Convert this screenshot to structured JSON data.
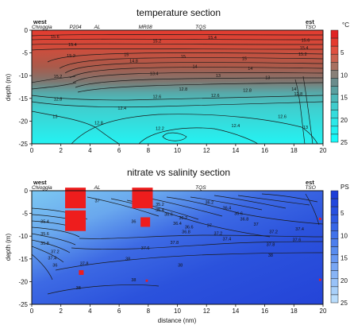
{
  "chart_data": [
    {
      "type": "contour",
      "title": "temperature section",
      "ylabel": "depth (m)",
      "xlabel": "",
      "xlim": [
        0,
        20
      ],
      "ylim": [
        -25,
        0
      ],
      "xticks": [
        "0",
        "2",
        "4",
        "6",
        "8",
        "10",
        "12",
        "14",
        "16",
        "18",
        "20"
      ],
      "yticks": [
        "0",
        "-5",
        "-10",
        "-15",
        "-20",
        "-25"
      ],
      "side_labels": {
        "left": "west",
        "right": "est"
      },
      "stations": [
        {
          "name": "Chioggia",
          "x": 0
        },
        {
          "name": "P204",
          "x": 3
        },
        {
          "name": "AL",
          "x": 4.5
        },
        {
          "name": "MR08",
          "x": 7.8
        },
        {
          "name": "TQS",
          "x": 11.6
        },
        {
          "name": "TSO",
          "x": 19.5
        }
      ],
      "colorbar": {
        "unit": "°C",
        "ticks": [
          "5",
          "10",
          "15",
          "20",
          "25"
        ],
        "colors": [
          "#e02323",
          "#e43a2f",
          "#e05040",
          "#c96250",
          "#a87060",
          "#888078",
          "#6a8c8c",
          "#5aa0a0",
          "#4cb8b8",
          "#40cccc",
          "#36dcdc",
          "#2ce8e8",
          "#22f0f0",
          "#18f8f8"
        ]
      },
      "contour_labels": [
        {
          "text": "15.6",
          "x": 1.6,
          "y": -1.4
        },
        {
          "text": "15.4",
          "x": 2.8,
          "y": -3.2
        },
        {
          "text": "15.2",
          "x": 2.7,
          "y": -5.6
        },
        {
          "text": "15.2",
          "x": 8.6,
          "y": -2.4
        },
        {
          "text": "15.4",
          "x": 12.4,
          "y": -1.6
        },
        {
          "text": "15.6",
          "x": 18.8,
          "y": -2.2
        },
        {
          "text": "15.4",
          "x": 18.7,
          "y": -3.9
        },
        {
          "text": "15.2",
          "x": 18.6,
          "y": -5.3
        },
        {
          "text": "15",
          "x": 6.5,
          "y": -5.4
        },
        {
          "text": "15",
          "x": 10.4,
          "y": -5.8
        },
        {
          "text": "15",
          "x": 14.6,
          "y": -6.2
        },
        {
          "text": "14.8",
          "x": 7.0,
          "y": -6.8
        },
        {
          "text": "14",
          "x": 11.2,
          "y": -8.0
        },
        {
          "text": "14",
          "x": 15.0,
          "y": -8.4
        },
        {
          "text": "13.4",
          "x": 8.4,
          "y": -9.6
        },
        {
          "text": "13",
          "x": 12.8,
          "y": -10.0
        },
        {
          "text": "13",
          "x": 16.2,
          "y": -10.4
        },
        {
          "text": "15.2",
          "x": 1.8,
          "y": -10.2
        },
        {
          "text": "12.8",
          "x": 10.4,
          "y": -13.0
        },
        {
          "text": "12.8",
          "x": 14.8,
          "y": -13.2
        },
        {
          "text": "12.6",
          "x": 8.6,
          "y": -14.6
        },
        {
          "text": "12.6",
          "x": 12.6,
          "y": -14.4
        },
        {
          "text": "12.8",
          "x": 1.8,
          "y": -15.2
        },
        {
          "text": "13",
          "x": 1.6,
          "y": -19.0
        },
        {
          "text": "12.8",
          "x": 4.6,
          "y": -20.4
        },
        {
          "text": "12.4",
          "x": 6.2,
          "y": -17.2
        },
        {
          "text": "12.4",
          "x": 14.0,
          "y": -21.0
        },
        {
          "text": "12.2",
          "x": 8.8,
          "y": -21.6
        },
        {
          "text": "12.6",
          "x": 17.2,
          "y": -19.0
        },
        {
          "text": "13",
          "x": 18.8,
          "y": -21.4
        },
        {
          "text": "14",
          "x": 18.0,
          "y": -13.0
        },
        {
          "text": "12.8",
          "x": 18.3,
          "y": -14.0
        }
      ]
    },
    {
      "type": "contour",
      "title": "nitrate vs salinity section",
      "ylabel": "depth (m)",
      "xlabel": "distance (nm)",
      "xlim": [
        0,
        20
      ],
      "ylim": [
        -25,
        0
      ],
      "xticks": [
        "0",
        "2",
        "4",
        "6",
        "8",
        "10",
        "12",
        "14",
        "16",
        "18",
        "20"
      ],
      "yticks": [
        "0",
        "-5",
        "-10",
        "-15",
        "-20",
        "-25"
      ],
      "side_labels": {
        "left": "west",
        "right": "est"
      },
      "stations": [
        {
          "name": "Chioggia",
          "x": 0
        },
        {
          "name": "AL",
          "x": 4.5
        },
        {
          "name": "TQS",
          "x": 11.6
        },
        {
          "name": "TSO",
          "x": 19.5
        }
      ],
      "colorbar": {
        "unit": "PS",
        "ticks": [
          "5",
          "10",
          "15",
          "20",
          "25"
        ],
        "colors": [
          "#1f3fd8",
          "#2347dc",
          "#2850e0",
          "#2f5ae2",
          "#3866e6",
          "#4272ea",
          "#4d7eec",
          "#598cef",
          "#6898f2",
          "#78a6f4",
          "#88b4f6",
          "#98c2f8",
          "#a8d0fa",
          "#b8dcfc"
        ]
      },
      "contour_labels": [
        {
          "text": "35.4",
          "x": 0.9,
          "y": -6.8
        },
        {
          "text": "35.6",
          "x": 0.9,
          "y": -9.5
        },
        {
          "text": "35.8",
          "x": 0.9,
          "y": -11.6
        },
        {
          "text": "37.2",
          "x": 1.6,
          "y": -13.4
        },
        {
          "text": "37.4",
          "x": 1.4,
          "y": -14.8
        },
        {
          "text": "36",
          "x": 1.6,
          "y": -16.4
        },
        {
          "text": "37",
          "x": 4.5,
          "y": -2.2
        },
        {
          "text": "35.2",
          "x": 8.8,
          "y": -3.0
        },
        {
          "text": "35.4",
          "x": 8.8,
          "y": -4.2
        },
        {
          "text": "35.6",
          "x": 9.4,
          "y": -5.2
        },
        {
          "text": "36",
          "x": 7.0,
          "y": -6.8
        },
        {
          "text": "36.2",
          "x": 10.4,
          "y": -6.0
        },
        {
          "text": "36.4",
          "x": 10.0,
          "y": -7.2
        },
        {
          "text": "36.6",
          "x": 10.8,
          "y": -8.0
        },
        {
          "text": "36.8",
          "x": 10.6,
          "y": -9.0
        },
        {
          "text": "37",
          "x": 12.2,
          "y": -7.6
        },
        {
          "text": "37.2",
          "x": 12.8,
          "y": -9.4
        },
        {
          "text": "37.4",
          "x": 13.4,
          "y": -10.6
        },
        {
          "text": "36.2",
          "x": 12.2,
          "y": -2.6
        },
        {
          "text": "36.4",
          "x": 13.4,
          "y": -3.8
        },
        {
          "text": "36.6",
          "x": 14.2,
          "y": -5.0
        },
        {
          "text": "36.8",
          "x": 14.6,
          "y": -6.2
        },
        {
          "text": "37",
          "x": 15.4,
          "y": -7.4
        },
        {
          "text": "37.2",
          "x": 16.6,
          "y": -9.0
        },
        {
          "text": "37.4",
          "x": 18.4,
          "y": -8.4
        },
        {
          "text": "37.6",
          "x": 18.2,
          "y": -10.8
        },
        {
          "text": "37.8",
          "x": 9.8,
          "y": -11.4
        },
        {
          "text": "37.6",
          "x": 7.8,
          "y": -12.6
        },
        {
          "text": "37.8",
          "x": 16.4,
          "y": -11.8
        },
        {
          "text": "38",
          "x": 10.2,
          "y": -16.4
        },
        {
          "text": "38",
          "x": 16.4,
          "y": -14.2
        },
        {
          "text": "38",
          "x": 7.0,
          "y": -19.6
        },
        {
          "text": "38",
          "x": 3.2,
          "y": -21.4
        },
        {
          "text": "37.8",
          "x": 3.6,
          "y": -16.0
        },
        {
          "text": "38",
          "x": 6.6,
          "y": -15.0
        }
      ],
      "nitrate_markers": [
        {
          "x": 3.0,
          "y": -1.6,
          "size": "large"
        },
        {
          "x": 7.6,
          "y": -1.6,
          "size": "large"
        },
        {
          "x": 3.0,
          "y": -6.6,
          "size": "large"
        },
        {
          "x": 7.8,
          "y": -6.9,
          "size": "medium"
        },
        {
          "x": 3.4,
          "y": -18.0,
          "size": "small"
        },
        {
          "x": 7.9,
          "y": -19.8,
          "size": "tiny"
        },
        {
          "x": 19.8,
          "y": -6.2,
          "size": "tiny"
        },
        {
          "x": 19.8,
          "y": -19.6,
          "size": "tiny"
        }
      ]
    }
  ]
}
